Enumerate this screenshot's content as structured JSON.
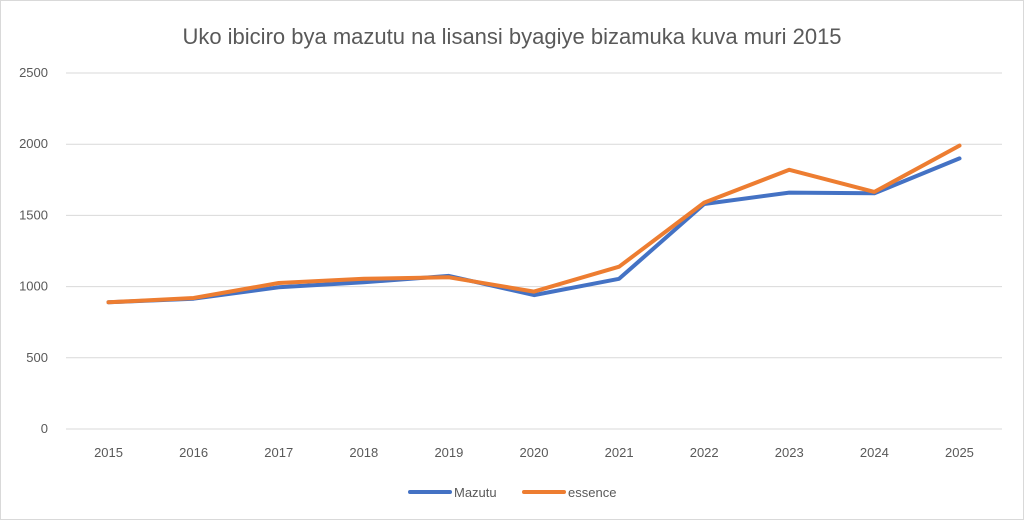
{
  "chart_data": {
    "type": "line",
    "title": "Uko ibiciro bya mazutu na lisansi byagiye bizamuka kuva muri 2015",
    "xlabel": "",
    "ylabel": "",
    "categories": [
      "2015",
      "2016",
      "2017",
      "2018",
      "2019",
      "2020",
      "2021",
      "2022",
      "2023",
      "2024",
      "2025"
    ],
    "yticks": [
      "0",
      "500",
      "1000",
      "1500",
      "2000",
      "2500"
    ],
    "ylim": [
      0,
      2500
    ],
    "grid": true,
    "legend_position": "bottom",
    "series": [
      {
        "name": "Mazutu",
        "color": "#4472C4",
        "values": [
          890,
          915,
          995,
          1030,
          1075,
          940,
          1055,
          1580,
          1660,
          1655,
          1900
        ]
      },
      {
        "name": "essence",
        "color": "#ED7D31",
        "values": [
          890,
          920,
          1025,
          1055,
          1065,
          965,
          1140,
          1590,
          1820,
          1665,
          1990
        ]
      }
    ],
    "gridline_color": "#d9d9d9"
  }
}
